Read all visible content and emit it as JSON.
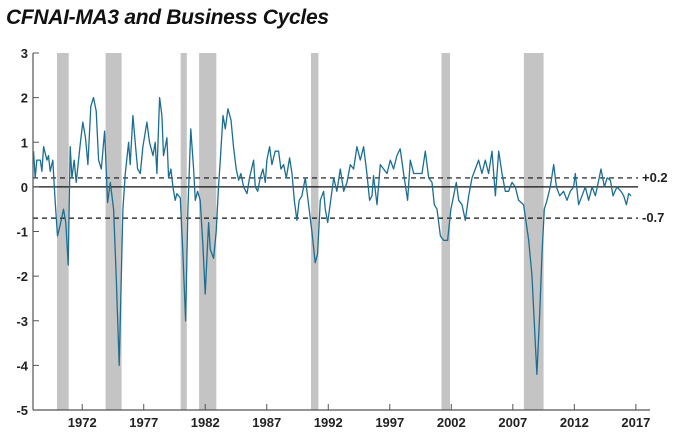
{
  "chart_data": {
    "type": "line",
    "title": "CFNAI-MA3 and Business Cycles",
    "xlabel": "",
    "ylabel": "",
    "xlim": [
      1968.0,
      2018.15
    ],
    "ylim": [
      -5,
      3
    ],
    "yticks": [
      "3",
      "2",
      "1",
      "0",
      "-1",
      "-2",
      "-3",
      "-4",
      "-5"
    ],
    "ytick_values": [
      3,
      2,
      1,
      0,
      -1,
      -2,
      -3,
      -4,
      -5
    ],
    "xticks": [
      "1972",
      "1977",
      "1982",
      "1987",
      "1992",
      "1997",
      "2002",
      "2007",
      "2012",
      "2017"
    ],
    "xtick_values": [
      1972,
      1977,
      1982,
      1987,
      1992,
      1997,
      2002,
      2007,
      2012,
      2017
    ],
    "grid": false,
    "colors": {
      "series": "#1b6e92",
      "recession": "#c4c4c4",
      "axis": "#555555"
    },
    "recessions": [
      [
        1969.95,
        1970.9
      ],
      [
        1973.9,
        1975.2
      ],
      [
        1980.0,
        1980.5
      ],
      [
        1981.5,
        1982.9
      ],
      [
        1990.6,
        1991.2
      ],
      [
        2001.2,
        2001.9
      ],
      [
        2007.9,
        2009.5
      ]
    ],
    "reference_lines": [
      {
        "value": 0,
        "style": "solid",
        "label": ""
      },
      {
        "value": 0.2,
        "style": "dashed",
        "label": "+0.2"
      },
      {
        "value": -0.7,
        "style": "dashed",
        "label": "-0.7"
      }
    ],
    "series": [
      {
        "name": "CFNAI-MA3",
        "x": [
          1968.04,
          1968.18,
          1968.31,
          1968.59,
          1968.72,
          1968.86,
          1969.13,
          1969.26,
          1969.4,
          1969.61,
          1969.8,
          1969.99,
          1970.21,
          1970.48,
          1970.67,
          1970.86,
          1971.02,
          1971.16,
          1971.35,
          1971.51,
          1971.84,
          1972.05,
          1972.27,
          1972.46,
          1972.7,
          1972.92,
          1973.14,
          1973.33,
          1973.55,
          1973.82,
          1974.06,
          1974.28,
          1974.55,
          1974.76,
          1975.01,
          1975.31,
          1975.5,
          1975.77,
          1975.9,
          1976.12,
          1976.31,
          1976.5,
          1976.72,
          1976.93,
          1977.26,
          1977.47,
          1977.75,
          1977.93,
          1978.07,
          1978.29,
          1978.48,
          1978.61,
          1978.75,
          1978.88,
          1979.02,
          1979.21,
          1979.37,
          1979.56,
          1979.7,
          1979.97,
          1980.18,
          1980.4,
          1980.59,
          1980.83,
          1981.05,
          1981.19,
          1981.38,
          1981.59,
          1981.81,
          1982.0,
          1982.27,
          1982.41,
          1982.68,
          1982.89,
          1983.08,
          1983.22,
          1983.44,
          1983.63,
          1983.84,
          1984.09,
          1984.3,
          1984.52,
          1984.71,
          1984.9,
          1985.12,
          1985.39,
          1985.6,
          1985.93,
          1986.07,
          1986.26,
          1986.47,
          1986.69,
          1986.88,
          1987.01,
          1987.23,
          1987.42,
          1987.69,
          1987.96,
          1988.15,
          1988.37,
          1988.59,
          1988.86,
          1989.05,
          1989.24,
          1989.45,
          1989.64,
          1989.86,
          1990.13,
          1990.4,
          1990.67,
          1990.94,
          1991.13,
          1991.35,
          1991.62,
          1991.76,
          1991.95,
          1992.44,
          1992.7,
          1992.98,
          1993.25,
          1993.52,
          1993.79,
          1994.06,
          1994.33,
          1994.6,
          1994.87,
          1995.14,
          1995.36,
          1995.55,
          1995.68,
          1995.96,
          1996.23,
          1996.5,
          1996.77,
          1997.04,
          1997.31,
          1997.58,
          1997.85,
          1998.12,
          1998.45,
          1998.67,
          1998.94,
          1999.26,
          1999.62,
          1999.89,
          2000.16,
          2000.43,
          2000.62,
          2000.84,
          2001.11,
          2001.38,
          2001.7,
          2001.97,
          2002.41,
          2002.6,
          2002.87,
          2003.14,
          2003.41,
          2003.68,
          2003.95,
          2004.22,
          2004.49,
          2004.76,
          2005.03,
          2005.31,
          2005.58,
          2005.85,
          2006.12,
          2006.39,
          2006.66,
          2006.93,
          2007.2,
          2007.47,
          2007.88,
          2008.29,
          2008.56,
          2008.83,
          2008.96,
          2009.18,
          2009.37,
          2009.56,
          2009.78,
          2010.05,
          2010.32,
          2010.54,
          2010.81,
          2011.13,
          2011.4,
          2011.67,
          2011.94,
          2012.08,
          2012.35,
          2012.62,
          2012.89,
          2013.16,
          2013.44,
          2013.71,
          2013.98,
          2014.17,
          2014.44,
          2014.66,
          2014.93,
          2015.14,
          2015.47,
          2015.79,
          2016.01,
          2016.23,
          2016.42,
          2016.61
        ],
        "y": [
          0.8,
          0.2,
          0.6,
          0.6,
          0.35,
          0.9,
          0.6,
          0.7,
          0.35,
          0.6,
          -0.3,
          -1.1,
          -0.85,
          -0.5,
          -0.8,
          -1.75,
          0.9,
          0.2,
          0.6,
          0.1,
          0.95,
          1.45,
          1.1,
          0.5,
          1.8,
          2.0,
          1.7,
          0.6,
          0.4,
          1.25,
          -0.35,
          0.1,
          -0.5,
          -2.0,
          -4.0,
          -0.5,
          0.3,
          1.0,
          0.5,
          1.6,
          1.0,
          0.4,
          0.3,
          0.9,
          1.45,
          1.0,
          0.7,
          1.0,
          0.3,
          2.0,
          1.6,
          0.7,
          0.9,
          1.1,
          0.2,
          0.4,
          0.0,
          -0.3,
          -0.15,
          -0.25,
          -1.5,
          -3.0,
          -0.5,
          1.3,
          0.4,
          -0.3,
          -0.1,
          -0.3,
          -1.3,
          -2.4,
          -0.8,
          -1.4,
          -1.6,
          -1.0,
          0.0,
          0.6,
          1.6,
          1.3,
          1.75,
          1.5,
          0.9,
          0.4,
          0.15,
          0.3,
          0.0,
          -0.15,
          0.2,
          0.6,
          0.0,
          -0.1,
          0.2,
          0.4,
          0.1,
          0.6,
          0.9,
          0.5,
          0.8,
          0.8,
          0.4,
          0.5,
          0.2,
          0.65,
          0.3,
          -0.3,
          -0.75,
          -0.3,
          -0.2,
          0.2,
          -0.4,
          -1.0,
          -1.7,
          -1.5,
          -0.3,
          -0.1,
          -0.5,
          -0.8,
          0.2,
          -0.1,
          0.4,
          -0.1,
          0.1,
          0.5,
          0.4,
          0.9,
          0.6,
          0.9,
          0.3,
          -0.3,
          -0.2,
          0.25,
          -0.4,
          0.5,
          0.4,
          0.3,
          0.6,
          0.4,
          0.7,
          0.85,
          0.3,
          -0.3,
          0.6,
          0.3,
          0.3,
          0.3,
          0.8,
          0.2,
          0.1,
          -0.4,
          -0.5,
          -1.1,
          -1.2,
          -1.2,
          -0.5,
          0.1,
          -0.3,
          -0.4,
          -0.75,
          -0.2,
          0.2,
          0.4,
          0.6,
          0.3,
          0.6,
          0.3,
          0.8,
          -0.2,
          0.8,
          0.3,
          -0.1,
          -0.1,
          0.1,
          0.0,
          -0.3,
          -0.4,
          -1.2,
          -2.0,
          -3.5,
          -4.2,
          -2.9,
          -1.5,
          -0.5,
          -0.3,
          0.0,
          0.5,
          0.0,
          -0.2,
          -0.1,
          -0.3,
          -0.1,
          0.0,
          0.3,
          -0.4,
          -0.2,
          0.0,
          -0.3,
          0.0,
          -0.2,
          0.15,
          0.4,
          0.0,
          0.2,
          0.15,
          -0.2,
          0.0,
          -0.1,
          -0.2,
          -0.4,
          -0.15,
          -0.2
        ]
      }
    ]
  }
}
